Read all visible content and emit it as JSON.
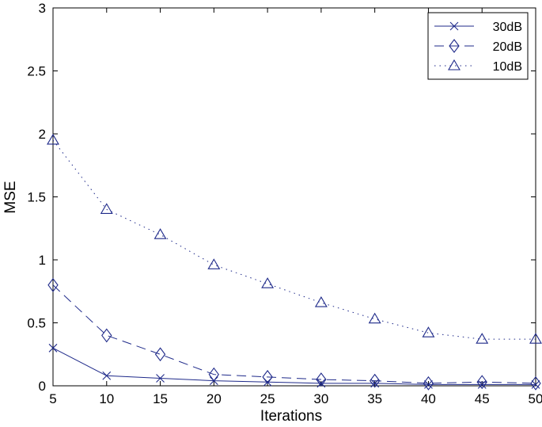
{
  "chart_data": {
    "type": "line",
    "title": "",
    "xlabel": "Iterations",
    "ylabel": "MSE",
    "x": [
      5,
      10,
      15,
      20,
      25,
      30,
      35,
      40,
      45,
      50
    ],
    "xlim": [
      5,
      50
    ],
    "ylim": [
      0,
      3
    ],
    "xticks": [
      "5",
      "10",
      "15",
      "20",
      "25",
      "30",
      "35",
      "40",
      "45",
      "50"
    ],
    "yticks": [
      "0",
      "0.5",
      "1",
      "1.5",
      "2",
      "2.5",
      "3"
    ],
    "grid": false,
    "legend_position": "top-right",
    "line_color": "#1f2a8a",
    "series": [
      {
        "name": "30dB",
        "marker": "x",
        "dash": "solid",
        "values": [
          0.3,
          0.08,
          0.06,
          0.04,
          0.03,
          0.02,
          0.02,
          0.01,
          0.01,
          0.01
        ]
      },
      {
        "name": "20dB",
        "marker": "diamond",
        "dash": "dashed",
        "values": [
          0.8,
          0.4,
          0.25,
          0.09,
          0.07,
          0.05,
          0.04,
          0.02,
          0.03,
          0.02
        ]
      },
      {
        "name": "10dB",
        "marker": "triangle",
        "dash": "dotted",
        "values": [
          1.95,
          1.4,
          1.2,
          0.96,
          0.81,
          0.66,
          0.53,
          0.42,
          0.37,
          0.37
        ]
      }
    ]
  }
}
